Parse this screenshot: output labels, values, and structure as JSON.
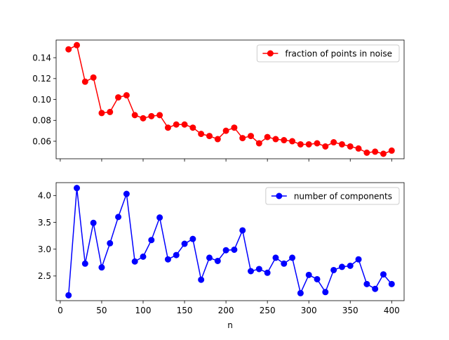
{
  "chart_data": [
    {
      "type": "line",
      "xlabel": "",
      "ylabel": "",
      "xlim": [
        -5,
        415
      ],
      "ylim": [
        0.0432,
        0.1569
      ],
      "xticks": [
        0,
        50,
        100,
        150,
        200,
        250,
        300,
        350,
        400
      ],
      "xtick_labels_visible": false,
      "yticks": [
        0.06,
        0.08,
        0.1,
        0.12,
        0.14
      ],
      "ytick_labels": [
        "0.06",
        "0.08",
        "0.10",
        "0.12",
        "0.14"
      ],
      "grid": false,
      "legend_position": "top-right",
      "series": [
        {
          "name": "fraction of points in noise",
          "color": "#ff0000",
          "marker": "circle",
          "x": [
            10,
            20,
            30,
            40,
            50,
            60,
            70,
            80,
            90,
            100,
            110,
            120,
            130,
            140,
            150,
            160,
            170,
            180,
            190,
            200,
            210,
            220,
            230,
            240,
            250,
            260,
            270,
            280,
            290,
            300,
            310,
            320,
            330,
            340,
            350,
            360,
            370,
            380,
            390,
            400
          ],
          "y": [
            0.148,
            0.152,
            0.117,
            0.121,
            0.087,
            0.088,
            0.102,
            0.104,
            0.085,
            0.082,
            0.084,
            0.085,
            0.073,
            0.076,
            0.076,
            0.073,
            0.067,
            0.065,
            0.062,
            0.07,
            0.073,
            0.063,
            0.065,
            0.058,
            0.064,
            0.062,
            0.061,
            0.06,
            0.057,
            0.057,
            0.058,
            0.055,
            0.059,
            0.057,
            0.055,
            0.053,
            0.049,
            0.05,
            0.048,
            0.051
          ]
        }
      ]
    },
    {
      "type": "line",
      "xlabel": "n",
      "ylabel": "",
      "xlim": [
        -5,
        415
      ],
      "ylim": [
        2.04,
        4.24
      ],
      "xticks": [
        0,
        50,
        100,
        150,
        200,
        250,
        300,
        350,
        400
      ],
      "xtick_labels": [
        "0",
        "50",
        "100",
        "150",
        "200",
        "250",
        "300",
        "350",
        "400"
      ],
      "yticks": [
        2.5,
        3.0,
        3.5,
        4.0
      ],
      "ytick_labels": [
        "2.5",
        "3.0",
        "3.5",
        "4.0"
      ],
      "grid": false,
      "legend_position": "top-right",
      "series": [
        {
          "name": "number of components",
          "color": "#0000ff",
          "marker": "circle",
          "x": [
            10,
            20,
            30,
            40,
            50,
            60,
            70,
            80,
            90,
            100,
            110,
            120,
            130,
            140,
            150,
            160,
            170,
            180,
            190,
            200,
            210,
            220,
            230,
            240,
            250,
            260,
            270,
            280,
            290,
            300,
            310,
            320,
            330,
            340,
            350,
            360,
            370,
            380,
            390,
            400
          ],
          "y": [
            2.14,
            4.14,
            2.73,
            3.49,
            2.66,
            3.11,
            3.6,
            4.03,
            2.77,
            2.86,
            3.17,
            3.59,
            2.81,
            2.89,
            3.1,
            3.19,
            2.43,
            2.84,
            2.78,
            2.98,
            2.99,
            3.35,
            2.59,
            2.63,
            2.56,
            2.84,
            2.73,
            2.84,
            2.18,
            2.52,
            2.44,
            2.2,
            2.61,
            2.67,
            2.69,
            2.81,
            2.35,
            2.26,
            2.53,
            2.35
          ]
        }
      ]
    }
  ]
}
